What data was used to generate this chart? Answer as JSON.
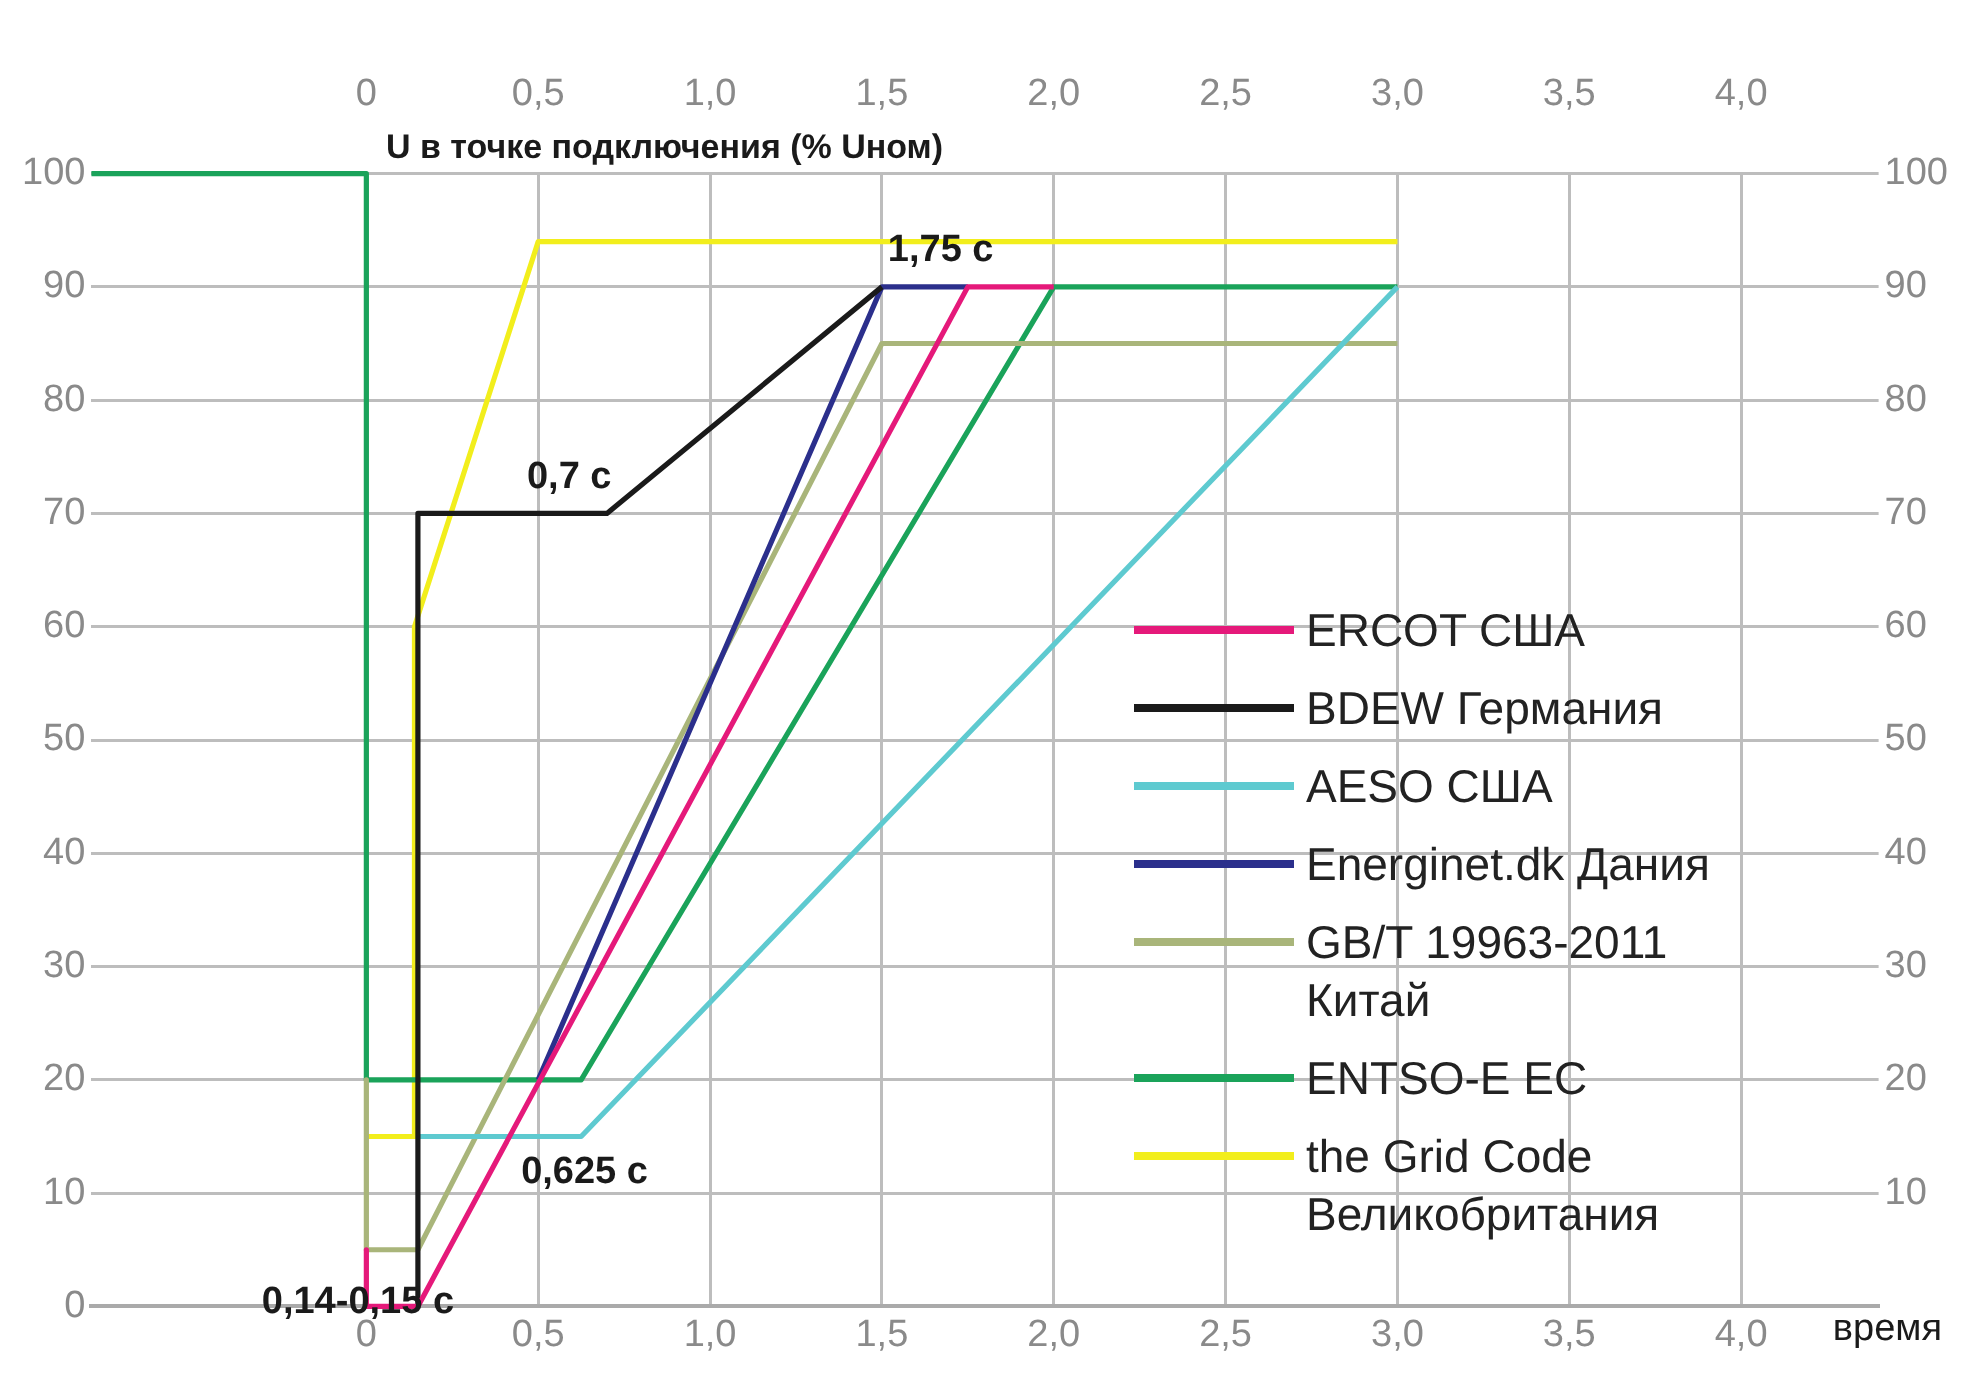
{
  "chart_data": {
    "type": "line",
    "ylabel": "U в точке подключения (% Uном)",
    "xlabel": "время",
    "xlim": [
      -0.8,
      4.4
    ],
    "ylim": [
      0,
      100
    ],
    "xticks": [
      0,
      {
        "value": 0.5,
        "label": "0,5"
      },
      {
        "value": 1,
        "label": "1,0"
      },
      {
        "value": 1.5,
        "label": "1,5"
      },
      {
        "value": 2,
        "label": "2,0"
      },
      {
        "value": 2.5,
        "label": "2,5"
      },
      {
        "value": 3,
        "label": "3,0"
      },
      {
        "value": 3.5,
        "label": "3,5"
      },
      {
        "value": 4,
        "label": "4,0"
      }
    ],
    "x2lim": [
      -0.8,
      4.4
    ],
    "x2ticks": [
      0,
      {
        "value": 0.5,
        "label": "0,5"
      },
      {
        "value": 1,
        "label": "1,0"
      },
      {
        "value": 1.5,
        "label": "1,5"
      },
      {
        "value": 2,
        "label": "2,0"
      },
      {
        "value": 2.5,
        "label": "2,5"
      },
      {
        "value": 3,
        "label": "3,0"
      },
      {
        "value": 3.5,
        "label": "3,5"
      },
      {
        "value": 4,
        "label": "4,0"
      }
    ],
    "yticks": [
      0,
      10,
      20,
      30,
      40,
      50,
      60,
      70,
      80,
      90,
      100
    ],
    "y2lim": [
      0,
      100
    ],
    "y2ticks": [
      10,
      20,
      30,
      40,
      50,
      60,
      70,
      80,
      90,
      100
    ],
    "grid": true,
    "legend": "bottom right",
    "marker": "none",
    "line_style": "solid",
    "series": [
      {
        "name": "ERCOT США",
        "color": "#e5197a",
        "x": [
          0,
          0,
          0.15,
          1.75,
          2.0
        ],
        "values": [
          5,
          0,
          0,
          90,
          90
        ]
      },
      {
        "name": "BDEW Германия",
        "color": "#1a1a1a",
        "x": [
          0.15,
          0.15,
          0.7,
          1.5
        ],
        "values": [
          0,
          70,
          70,
          90
        ]
      },
      {
        "name": "AESO США",
        "color": "#5ecad0",
        "x": [
          0.15,
          0.625,
          3.0
        ],
        "values": [
          15,
          15,
          90
        ]
      },
      {
        "name": "Energinet.dk Дания",
        "color": "#2b2f8c",
        "x": [
          0.5,
          1.5,
          1.75
        ],
        "values": [
          20,
          90,
          90
        ]
      },
      {
        "name": "GB/T 19963-2011 Китай",
        "color": "#a9b57a",
        "x": [
          0,
          0,
          0.15,
          1.5,
          3.0
        ],
        "values": [
          20,
          5,
          5,
          85,
          85
        ]
      },
      {
        "name": "ENTSO-E EC",
        "color": "#1aa35a",
        "x": [
          -0.8,
          0,
          0,
          0.625,
          2.0,
          3.0
        ],
        "values": [
          100,
          100,
          20,
          20,
          90,
          90
        ]
      },
      {
        "name": "the Grid Code Великобритания",
        "color": "#f2ee1c",
        "x": [
          0,
          0.14,
          0.14,
          0.5,
          3.0
        ],
        "values": [
          15,
          15,
          60,
          94,
          94
        ]
      }
    ],
    "annotations": [
      {
        "text": "0,7 c",
        "x": 0.7,
        "y": 70
      },
      {
        "text": "1,75 c",
        "x": 1.75,
        "y": 90
      },
      {
        "text": "0,625 c",
        "x": 0.625,
        "y": 15
      },
      {
        "text": "0,14-0,15 c",
        "x": 0.15,
        "y": 0
      }
    ]
  }
}
